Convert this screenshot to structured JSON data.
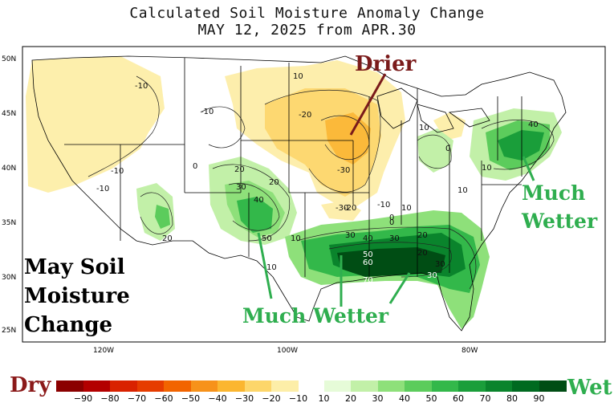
{
  "title": {
    "line1": "Calculated Soil Moisture Anomaly Change",
    "line2": "MAY 12, 2025 from APR.30"
  },
  "map": {
    "lat_labels": [
      "50N",
      "45N",
      "40N",
      "35N",
      "30N",
      "25N"
    ],
    "lon_labels": [
      "120W",
      "100W",
      "80W"
    ],
    "contour_labels": [
      "-10",
      "-10",
      "10",
      "0",
      "-10",
      "20",
      "-20",
      "-30",
      "-20",
      "-10",
      "0",
      "20",
      "30",
      "40",
      "50",
      "20",
      "10",
      "10",
      "30",
      "40",
      "30",
      "20",
      "10",
      "-30",
      "30",
      "50",
      "60",
      "70",
      "20",
      "30",
      "0",
      "10",
      "10",
      "0",
      "10",
      "40",
      "-10"
    ]
  },
  "annotations": {
    "drier": "Drier",
    "much_wetter_ne_1": "Much",
    "much_wetter_ne_2": "Wetter",
    "much_wetter_south": "Much Wetter",
    "may_1": "May Soil",
    "may_2": "Moisture",
    "may_3": "Change"
  },
  "legend": {
    "dry_label": "Dry",
    "wet_label": "Wet",
    "ticks": [
      "−90",
      "−80",
      "−70",
      "−60",
      "−50",
      "−40",
      "−30",
      "−20",
      "−10",
      "10",
      "20",
      "30",
      "40",
      "50",
      "60",
      "70",
      "80",
      "90"
    ],
    "dry_colors": [
      "#8b0000",
      "#b30000",
      "#d92200",
      "#e63c00",
      "#f26400",
      "#f7921a",
      "#fbb630",
      "#fdd66a",
      "#fdeea8"
    ],
    "wet_colors": [
      "#e6fbd8",
      "#c2f0a8",
      "#8ee07a",
      "#5ccc5c",
      "#33b84a",
      "#1a9e3a",
      "#0a842c",
      "#006a20",
      "#004d14"
    ],
    "colors": {
      "dry_text": "#8b1a1a",
      "wet_text": "#2fae4f",
      "drier_text": "#7a1a1a"
    }
  }
}
